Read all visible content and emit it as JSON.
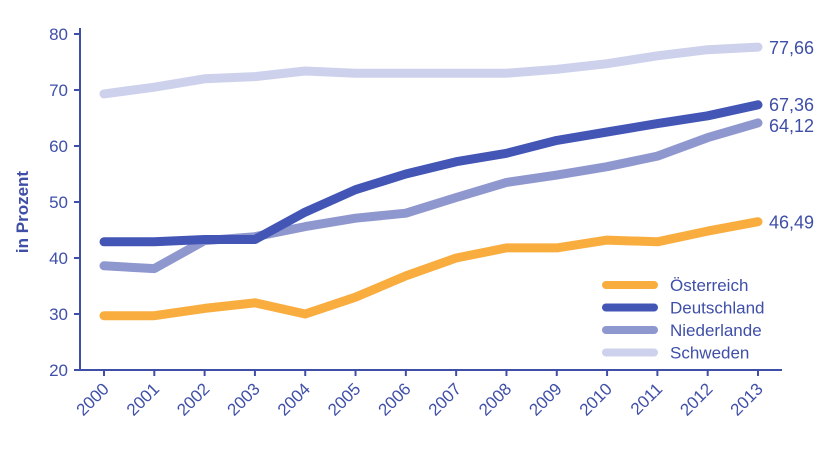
{
  "chart_data": {
    "type": "line",
    "ylabel": "in Prozent",
    "xlabel": "",
    "ylim": [
      20,
      80
    ],
    "yticks": [
      20,
      30,
      40,
      50,
      60,
      70,
      80
    ],
    "categories": [
      "2000",
      "2001",
      "2002",
      "2003",
      "2004",
      "2005",
      "2006",
      "2007",
      "2008",
      "2009",
      "2010",
      "2011",
      "2012",
      "2013"
    ],
    "series": [
      {
        "name": "Österreich",
        "color": "#f9ad3f",
        "values": [
          29.7,
          29.7,
          31.0,
          32.0,
          30.0,
          33.0,
          36.8,
          40.0,
          41.8,
          41.8,
          43.2,
          42.9,
          44.8,
          46.49
        ],
        "end_label": "46,49"
      },
      {
        "name": "Deutschland",
        "color": "#4356b5",
        "values": [
          42.9,
          42.9,
          43.3,
          43.3,
          48.2,
          52.2,
          55.0,
          57.2,
          58.7,
          61.0,
          62.5,
          64.0,
          65.4,
          67.36
        ],
        "end_label": "67,36"
      },
      {
        "name": "Niederlande",
        "color": "#8f97cf",
        "values": [
          38.6,
          38.1,
          43.1,
          43.8,
          45.6,
          47.1,
          48.0,
          50.8,
          53.5,
          54.8,
          56.3,
          58.2,
          61.5,
          64.12
        ],
        "end_label": "64,12"
      },
      {
        "name": "Schweden",
        "color": "#cdd1ec",
        "values": [
          69.3,
          70.5,
          72.0,
          72.4,
          73.4,
          73.0,
          73.0,
          73.0,
          73.0,
          73.7,
          74.7,
          76.1,
          77.2,
          77.66
        ],
        "end_label": "77,66"
      }
    ],
    "legend": "bottom-right",
    "grid": false
  }
}
